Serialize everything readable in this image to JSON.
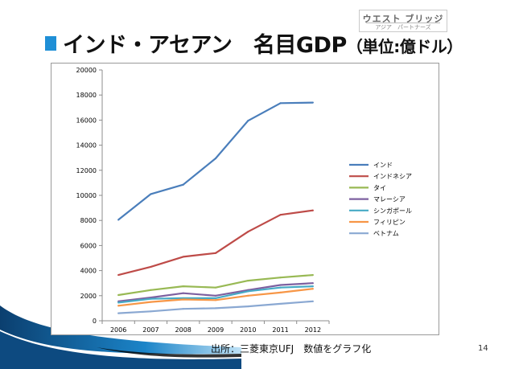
{
  "logo": {
    "title": "ウエスト ブリッジ",
    "subtitle": "アジア　パートナーズ"
  },
  "slide": {
    "title_main": "インド・アセアン　名目GDP",
    "title_unit": "（単位:億ドル）",
    "source": "出所：三菱東京UFJ　数値をグラフ化",
    "page_number": "14"
  },
  "chart_data": {
    "type": "line",
    "title": "",
    "xlabel": "",
    "ylabel": "",
    "x": [
      "2006",
      "2007",
      "2008",
      "2009",
      "2010",
      "2011",
      "2012"
    ],
    "ylim": [
      0,
      20000
    ],
    "yticks": [
      0,
      2000,
      4000,
      6000,
      8000,
      10000,
      12000,
      14000,
      16000,
      18000,
      20000
    ],
    "grid": false,
    "legend_position": "right",
    "series": [
      {
        "name": "インド",
        "color": "#4a7ebb",
        "values": [
          8050,
          10100,
          10850,
          12950,
          15950,
          17350,
          17400
        ]
      },
      {
        "name": "インドネシア",
        "color": "#be4b48",
        "values": [
          3650,
          4300,
          5100,
          5400,
          7100,
          8450,
          8800
        ]
      },
      {
        "name": "タイ",
        "color": "#98b954",
        "values": [
          2050,
          2450,
          2750,
          2650,
          3200,
          3450,
          3650
        ]
      },
      {
        "name": "マレーシア",
        "color": "#7d60a0",
        "values": [
          1550,
          1850,
          2200,
          2000,
          2450,
          2850,
          3000
        ]
      },
      {
        "name": "シンガポール",
        "color": "#46aac5",
        "values": [
          1450,
          1750,
          1800,
          1800,
          2350,
          2650,
          2750
        ]
      },
      {
        "name": "フィリピン",
        "color": "#f79646",
        "values": [
          1200,
          1500,
          1700,
          1650,
          2000,
          2250,
          2550
        ]
      },
      {
        "name": "ベトナム",
        "color": "#8aa8d2",
        "values": [
          600,
          750,
          950,
          1000,
          1150,
          1350,
          1550
        ]
      }
    ]
  }
}
